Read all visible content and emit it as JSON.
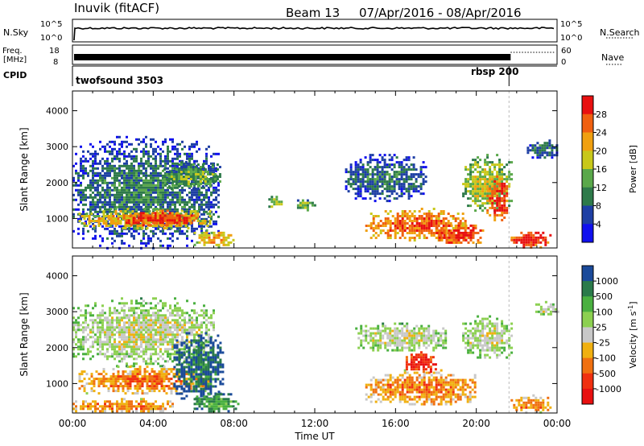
{
  "header": {
    "station": "Inuvik  (fitACF)",
    "beam": "Beam 13",
    "dates": "07/Apr/2016 - 08/Apr/2016"
  },
  "top_strips": {
    "nsky_label": "N.Sky",
    "nsky_ticks": [
      "10^5",
      "10^0"
    ],
    "nsearch_label": "N.Search",
    "nsearch_ticks": [
      "10^5",
      "10^0"
    ],
    "freq_label_1": "Freq.",
    "freq_label_2": "[MHz]",
    "freq_ticks": [
      "18",
      "8"
    ],
    "nave_label": "Nave",
    "nave_ticks": [
      "60",
      "0"
    ],
    "cpid_label": "CPID",
    "cpid_segments": [
      {
        "name": "twofsound 3503",
        "start_hour": 0.0,
        "end_hour": 21.7
      },
      {
        "name": "rbsp 200",
        "start_hour": 21.7,
        "end_hour": 24.0
      }
    ]
  },
  "chart_data": [
    {
      "type": "heatmap",
      "title": "",
      "xlabel": "Time UT",
      "ylabel": "Slant Range [km]",
      "xlim": [
        0,
        24
      ],
      "ylim": [
        180,
        4550
      ],
      "xticks": [
        "00:00",
        "04:00",
        "08:00",
        "12:00",
        "16:00",
        "20:00",
        "00:00"
      ],
      "yticks": [
        1000,
        2000,
        3000,
        4000
      ],
      "colorbar": {
        "label": "Power [dB]",
        "range": [
          0,
          32
        ],
        "ticks": [
          "4",
          "8",
          "12",
          "16",
          "20",
          "24",
          "28"
        ],
        "colors": [
          "#1010ee",
          "#1e3fa4",
          "#2e7a4a",
          "#5aa84a",
          "#c8c81a",
          "#f0a010",
          "#f06010",
          "#e81010"
        ]
      },
      "patches": [
        {
          "t0": 0.0,
          "t1": 7.2,
          "r0": 200,
          "r1": 3300,
          "level": 2
        },
        {
          "t0": 0.3,
          "t1": 6.8,
          "r0": 700,
          "r1": 1300,
          "level": 5
        },
        {
          "t0": 2.5,
          "t1": 6.2,
          "r0": 800,
          "r1": 1250,
          "level": 7
        },
        {
          "t0": 6.0,
          "t1": 8.0,
          "r0": 200,
          "r1": 700,
          "level": 5
        },
        {
          "t0": 4.5,
          "t1": 7.3,
          "r0": 1800,
          "r1": 2600,
          "level": 3
        },
        {
          "t0": 9.7,
          "t1": 10.3,
          "r0": 1300,
          "r1": 1700,
          "level": 4
        },
        {
          "t0": 11.0,
          "t1": 12.0,
          "r0": 1200,
          "r1": 1600,
          "level": 3
        },
        {
          "t0": 13.5,
          "t1": 17.5,
          "r0": 1500,
          "r1": 2800,
          "level": 2
        },
        {
          "t0": 14.5,
          "t1": 19.5,
          "r0": 400,
          "r1": 1300,
          "level": 6
        },
        {
          "t0": 18.0,
          "t1": 20.3,
          "r0": 300,
          "r1": 900,
          "level": 7
        },
        {
          "t0": 19.3,
          "t1": 21.7,
          "r0": 1200,
          "r1": 2800,
          "level": 4
        },
        {
          "t0": 20.5,
          "t1": 21.5,
          "r0": 900,
          "r1": 2200,
          "level": 7
        },
        {
          "t0": 21.7,
          "t1": 23.7,
          "r0": 200,
          "r1": 700,
          "level": 7
        },
        {
          "t0": 22.5,
          "t1": 24.0,
          "r0": 2700,
          "r1": 3200,
          "level": 2
        }
      ]
    },
    {
      "type": "heatmap",
      "title": "",
      "xlabel": "Time UT",
      "ylabel": "Slant Range [km]",
      "xlim": [
        0,
        24
      ],
      "ylim": [
        180,
        4550
      ],
      "xticks": [
        "00:00",
        "04:00",
        "08:00",
        "12:00",
        "16:00",
        "20:00",
        "00:00"
      ],
      "yticks": [
        1000,
        2000,
        3000,
        4000
      ],
      "colorbar": {
        "label": "Velocity [m s",
        "label_sup": "-1",
        "label_end": "]",
        "range": [
          -1500,
          1500
        ],
        "ticks": [
          "1000",
          "500",
          "100",
          "25",
          "-25",
          "-100",
          "-500",
          "-1000"
        ],
        "colors": [
          "#1a4a9a",
          "#2a7a4a",
          "#4ab040",
          "#8cd050",
          "#c8c8c8",
          "#f0b010",
          "#f07010",
          "#f03010",
          "#e81010"
        ]
      },
      "patches": [
        {
          "t0": 0.0,
          "t1": 7.0,
          "r0": 1500,
          "r1": 3400,
          "level": 4
        },
        {
          "t0": 0.3,
          "t1": 6.8,
          "r0": 700,
          "r1": 1500,
          "level": 6
        },
        {
          "t0": 5.0,
          "t1": 7.5,
          "r0": 500,
          "r1": 2500,
          "level": 1
        },
        {
          "t0": 6.0,
          "t1": 8.2,
          "r0": 200,
          "r1": 800,
          "level": 2
        },
        {
          "t0": 0.0,
          "t1": 5.0,
          "r0": 200,
          "r1": 600,
          "level": 6
        },
        {
          "t0": 14.0,
          "t1": 18.5,
          "r0": 1900,
          "r1": 2700,
          "level": 4
        },
        {
          "t0": 14.5,
          "t1": 20.0,
          "r0": 400,
          "r1": 1400,
          "level": 6
        },
        {
          "t0": 16.5,
          "t1": 18.0,
          "r0": 1300,
          "r1": 1900,
          "level": 8
        },
        {
          "t0": 19.3,
          "t1": 21.7,
          "r0": 1700,
          "r1": 2900,
          "level": 4
        },
        {
          "t0": 21.7,
          "t1": 23.7,
          "r0": 200,
          "r1": 700,
          "level": 6
        },
        {
          "t0": 22.8,
          "t1": 24.0,
          "r0": 2900,
          "r1": 3300,
          "level": 4
        }
      ]
    }
  ]
}
